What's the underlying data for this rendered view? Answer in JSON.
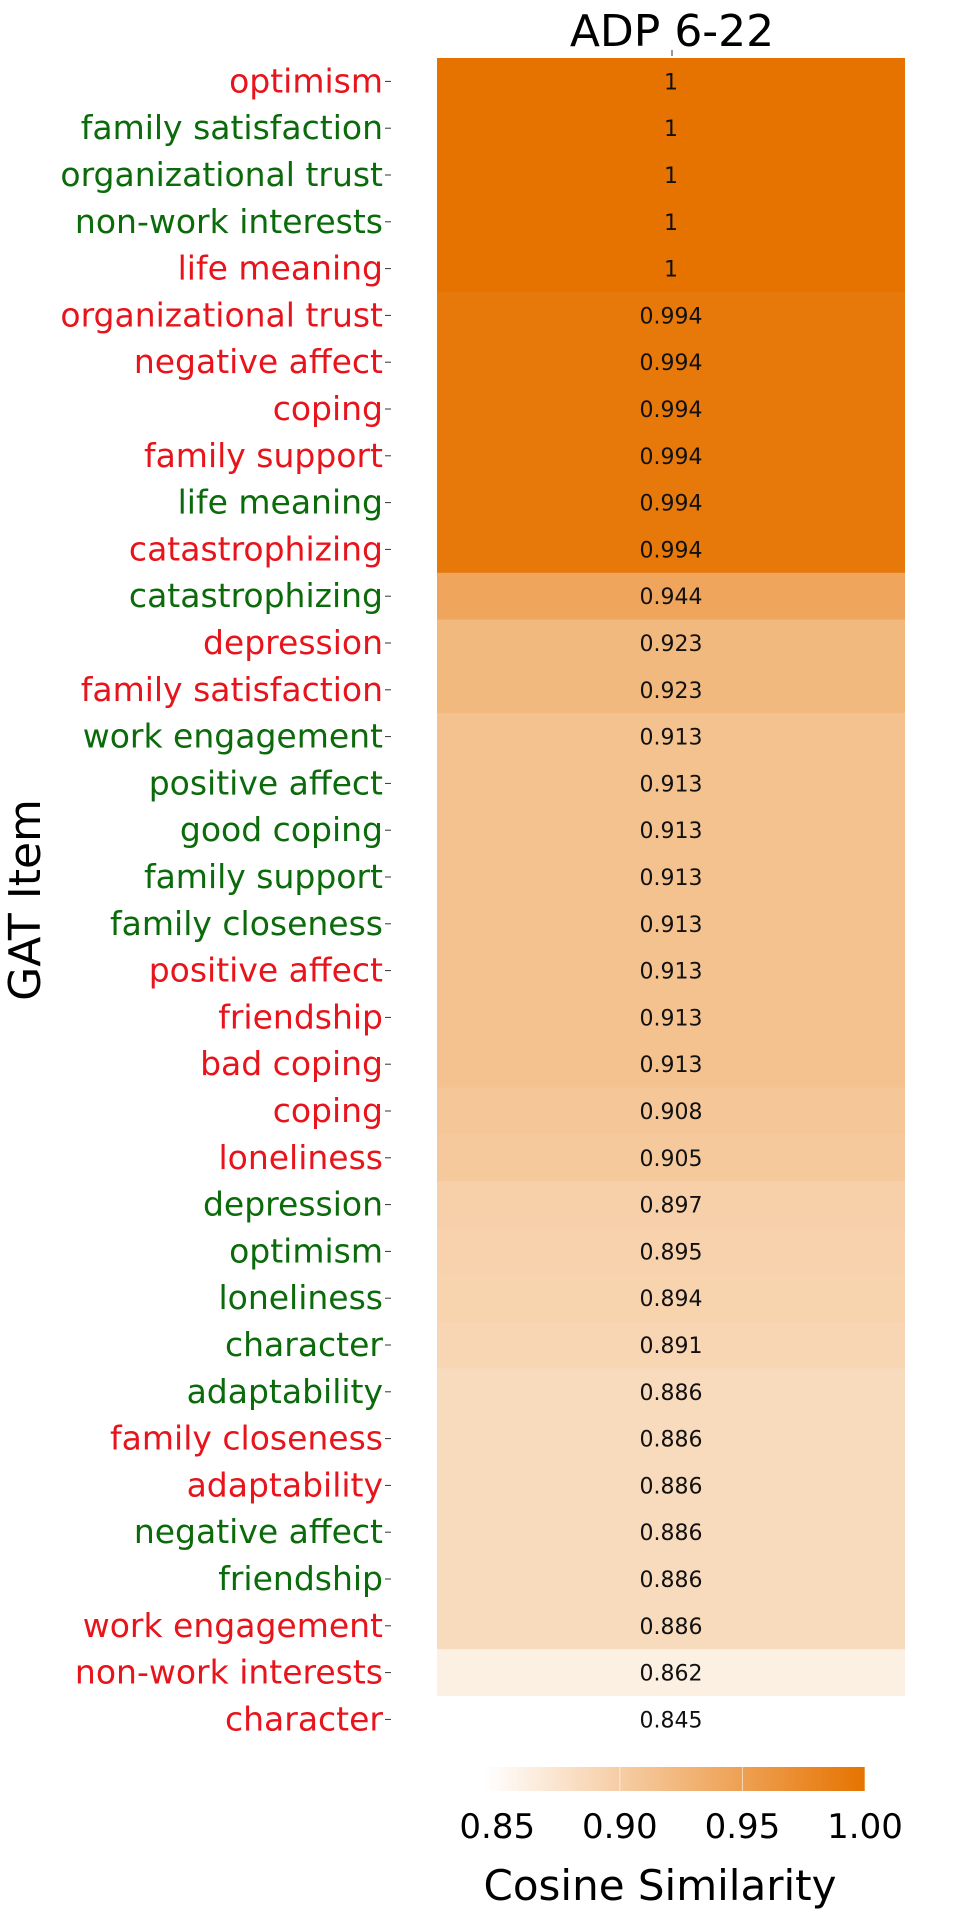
{
  "chart_data": {
    "type": "heatmap",
    "title": "ADP 6-22",
    "ylabel": "GAT Item",
    "colorbar": {
      "label": "Cosine Similarity",
      "range": [
        0.845,
        1.0
      ],
      "ticks": [
        "0.85",
        "0.90",
        "0.95",
        "1.00"
      ],
      "tick_values": [
        0.85,
        0.9,
        0.95,
        1.0
      ],
      "color_low": "#ffffff",
      "color_high": "#e67300"
    },
    "label_colors": {
      "red": "#e8141c",
      "green": "#0b6b0b"
    },
    "rows": [
      {
        "label": "optimism",
        "color": "red",
        "value": 1,
        "text": "1"
      },
      {
        "label": "family satisfaction",
        "color": "green",
        "value": 1,
        "text": "1"
      },
      {
        "label": "organizational trust",
        "color": "green",
        "value": 1,
        "text": "1"
      },
      {
        "label": "non-work interests",
        "color": "green",
        "value": 1,
        "text": "1"
      },
      {
        "label": "life meaning",
        "color": "red",
        "value": 1,
        "text": "1"
      },
      {
        "label": "organizational trust",
        "color": "red",
        "value": 0.994,
        "text": "0.994"
      },
      {
        "label": "negative affect",
        "color": "red",
        "value": 0.994,
        "text": "0.994"
      },
      {
        "label": "coping",
        "color": "red",
        "value": 0.994,
        "text": "0.994"
      },
      {
        "label": "family support",
        "color": "red",
        "value": 0.994,
        "text": "0.994"
      },
      {
        "label": "life meaning",
        "color": "green",
        "value": 0.994,
        "text": "0.994"
      },
      {
        "label": "catastrophizing",
        "color": "red",
        "value": 0.994,
        "text": "0.994"
      },
      {
        "label": "catastrophizing",
        "color": "green",
        "value": 0.944,
        "text": "0.944"
      },
      {
        "label": "depression",
        "color": "red",
        "value": 0.923,
        "text": "0.923"
      },
      {
        "label": "family satisfaction",
        "color": "red",
        "value": 0.923,
        "text": "0.923"
      },
      {
        "label": "work engagement",
        "color": "green",
        "value": 0.913,
        "text": "0.913"
      },
      {
        "label": "positive affect",
        "color": "green",
        "value": 0.913,
        "text": "0.913"
      },
      {
        "label": "good coping",
        "color": "green",
        "value": 0.913,
        "text": "0.913"
      },
      {
        "label": "family support",
        "color": "green",
        "value": 0.913,
        "text": "0.913"
      },
      {
        "label": "family closeness",
        "color": "green",
        "value": 0.913,
        "text": "0.913"
      },
      {
        "label": "positive affect",
        "color": "red",
        "value": 0.913,
        "text": "0.913"
      },
      {
        "label": "friendship",
        "color": "red",
        "value": 0.913,
        "text": "0.913"
      },
      {
        "label": "bad coping",
        "color": "red",
        "value": 0.913,
        "text": "0.913"
      },
      {
        "label": "coping",
        "color": "red",
        "value": 0.908,
        "text": "0.908"
      },
      {
        "label": "loneliness",
        "color": "red",
        "value": 0.905,
        "text": "0.905"
      },
      {
        "label": "depression",
        "color": "green",
        "value": 0.897,
        "text": "0.897"
      },
      {
        "label": "optimism",
        "color": "green",
        "value": 0.895,
        "text": "0.895"
      },
      {
        "label": "loneliness",
        "color": "green",
        "value": 0.894,
        "text": "0.894"
      },
      {
        "label": "character",
        "color": "green",
        "value": 0.891,
        "text": "0.891"
      },
      {
        "label": "adaptability",
        "color": "green",
        "value": 0.886,
        "text": "0.886"
      },
      {
        "label": "family closeness",
        "color": "red",
        "value": 0.886,
        "text": "0.886"
      },
      {
        "label": "adaptability",
        "color": "red",
        "value": 0.886,
        "text": "0.886"
      },
      {
        "label": "negative affect",
        "color": "green",
        "value": 0.886,
        "text": "0.886"
      },
      {
        "label": "friendship",
        "color": "green",
        "value": 0.886,
        "text": "0.886"
      },
      {
        "label": "work engagement",
        "color": "red",
        "value": 0.886,
        "text": "0.886"
      },
      {
        "label": "non-work interests",
        "color": "red",
        "value": 0.862,
        "text": "0.862"
      },
      {
        "label": "character",
        "color": "red",
        "value": 0.845,
        "text": "0.845"
      }
    ]
  }
}
